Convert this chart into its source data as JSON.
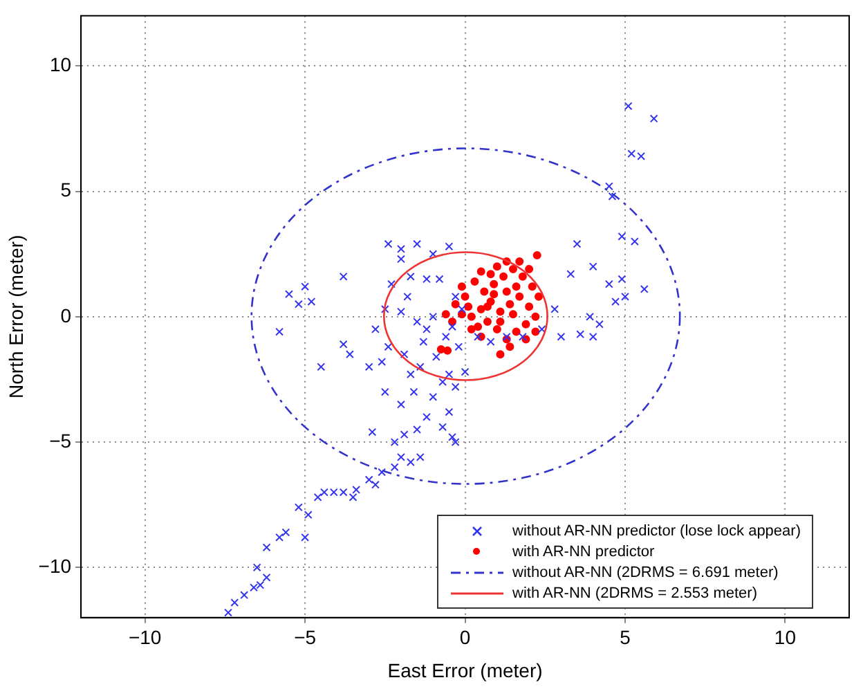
{
  "chart_data": {
    "type": "scatter",
    "xlabel": "East Error (meter)",
    "ylabel": "North Error (meter)",
    "xlim": [
      -12,
      12
    ],
    "ylim": [
      -12,
      12
    ],
    "xticks": [
      -10,
      -5,
      0,
      5,
      10
    ],
    "yticks": [
      -10,
      -5,
      0,
      5,
      10
    ],
    "grid": true,
    "legend": "bottom right",
    "annotations": [
      "without AR-NN (2DRMS = 6.691 meter)",
      "with AR-NN (2DRMS = 2.553 meter)"
    ],
    "series": [
      {
        "name": "without AR-NN predictor (lose lock appear)",
        "type": "scatter",
        "marker": "cross",
        "color": "#3333ee",
        "x": [
          -7.4,
          -7.2,
          -6.9,
          -6.6,
          -6.4,
          -6.2,
          -6.5,
          -6.2,
          -5.8,
          -5.6,
          -5.0,
          -5.2,
          -4.9,
          -4.6,
          -4.4,
          -4.1,
          -3.8,
          -3.5,
          -3.4,
          -3.0,
          -2.8,
          -2.6,
          -2.2,
          -2.0,
          -1.7,
          -1.4,
          -2.2,
          -1.9,
          -1.5,
          -1.2,
          -0.7,
          -0.4,
          -0.3,
          -0.5,
          -1.0,
          -2.0,
          -2.5,
          -1.6,
          -0.7,
          -3.0,
          -2.6,
          -3.6,
          -3.8,
          -2.4,
          -1.9,
          -1.4,
          -0.5,
          0,
          -0.3,
          -1.2,
          -1.0,
          -0.6,
          -0.2,
          -1.5,
          -2.0,
          -2.5,
          -2.8,
          -1.8,
          -2.3,
          -1.7,
          -1.2,
          -2.0,
          -2.4,
          -2.0,
          -1.5,
          -1.0,
          -0.5,
          -0.8,
          -0.3,
          -0.1,
          0.4,
          0.8,
          1.3,
          1.8,
          2.4,
          3.0,
          3.6,
          4.0,
          4.2,
          3.9,
          2.8,
          3.3,
          4.0,
          4.5,
          5.0,
          4.7,
          4.9,
          5.6,
          3.5,
          4.9,
          4.5,
          4.6,
          5.3,
          5.2,
          5.5,
          5.1,
          5.9,
          -5.8,
          -5.5,
          -5.2,
          -4.8,
          -5.0,
          -3.8,
          -4.5,
          -1.3,
          -0.9,
          -0.4,
          -1.7,
          -2.9
        ],
        "values": [
          -11.8,
          -11.4,
          -11.1,
          -10.8,
          -10.7,
          -10.4,
          -10.0,
          -9.2,
          -8.8,
          -8.6,
          -8.8,
          -7.6,
          -7.9,
          -7.2,
          -7.0,
          -7.0,
          -7.0,
          -7.2,
          -6.9,
          -6.5,
          -6.7,
          -6.2,
          -6.0,
          -5.6,
          -5.8,
          -5.6,
          -5.0,
          -4.7,
          -4.5,
          -4.0,
          -4.4,
          -4.8,
          -5.0,
          -3.8,
          -3.2,
          -3.5,
          -3.0,
          -3.0,
          -2.6,
          -2.0,
          -1.8,
          -1.5,
          -1.1,
          -1.2,
          -1.5,
          -2.0,
          -2.3,
          -2.2,
          -2.8,
          -0.5,
          0,
          -0.8,
          -1.2,
          -0.2,
          0.2,
          0.3,
          -0.5,
          0.8,
          1.3,
          1.6,
          1.5,
          2.3,
          2.9,
          2.7,
          2.9,
          2.5,
          2.8,
          1.5,
          0.8,
          0.3,
          -0.8,
          -1.0,
          -0.8,
          -0.8,
          -0.5,
          -0.8,
          -0.7,
          -0.8,
          -0.3,
          0,
          0.3,
          1.7,
          2.0,
          1.3,
          0.8,
          0.6,
          1.5,
          1.1,
          2.9,
          3.2,
          5.2,
          4.8,
          3.0,
          6.5,
          6.4,
          8.4,
          7.9,
          -0.6,
          0.9,
          0.5,
          0.6,
          1.2,
          1.6,
          -2.0,
          -1.0,
          -1.6,
          -0.4,
          -2.3,
          -4.6
        ]
      },
      {
        "name": "with AR-NN predictor",
        "type": "scatter",
        "marker": "circle",
        "color": "#ff0000",
        "x": [
          0.2,
          0.5,
          0.8,
          1.1,
          1.4,
          1.7,
          2.0,
          2.2,
          1.9,
          1.6,
          1.3,
          1.0,
          0.7,
          0.4,
          0.1,
          0.0,
          -0.3,
          -0.6,
          -0.4,
          0.6,
          0.9,
          1.2,
          1.5,
          1.8,
          2.1,
          2.3,
          1.3,
          1.0,
          0.8,
          1.6,
          1.9,
          1.4,
          1.1,
          0.5,
          0.2,
          -0.1,
          0.3,
          -0.1,
          0.5,
          1.7,
          2.2,
          0.9,
          1.3,
          2.0,
          -0.75,
          -0.55,
          2.25,
          0.7,
          1.5,
          1.1
        ],
        "values": [
          0,
          0.3,
          0.6,
          0.2,
          0.5,
          0.8,
          0.4,
          0,
          -0.3,
          -0.6,
          -0.9,
          -0.5,
          -0.2,
          -0.4,
          0.4,
          0.8,
          0.5,
          0.1,
          -0.2,
          1.0,
          1.3,
          1.6,
          1.9,
          1.6,
          1.2,
          0.8,
          2.2,
          2.0,
          1.7,
          1.2,
          -0.9,
          -1.2,
          -1.5,
          -0.8,
          -0.5,
          0.1,
          1.4,
          1.2,
          1.8,
          2.2,
          -0.6,
          0.9,
          1.0,
          1.9,
          -1.3,
          -1.35,
          2.45,
          0.4,
          0.1,
          -0.2
        ]
      }
    ]
  }
}
